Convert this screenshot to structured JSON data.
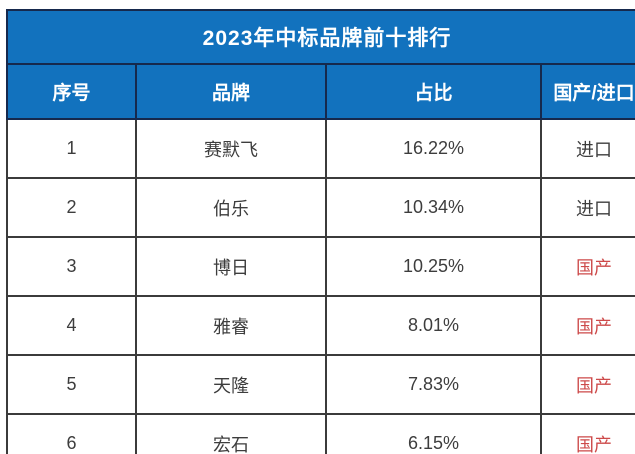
{
  "chart_data": {
    "type": "table",
    "title": "2023年中标品牌前十排行",
    "columns": [
      "序号",
      "品牌",
      "占比",
      "国产/进口"
    ],
    "rows": [
      [
        "1",
        "赛默飞",
        "16.22%",
        "进口"
      ],
      [
        "2",
        "伯乐",
        "10.34%",
        "进口"
      ],
      [
        "3",
        "博日",
        "10.25%",
        "国产"
      ],
      [
        "4",
        "雅睿",
        "8.01%",
        "国产"
      ],
      [
        "5",
        "天隆",
        "7.83%",
        "国产"
      ],
      [
        "6",
        "宏石",
        "6.15%",
        "国产"
      ]
    ],
    "share_percent_numeric": [
      16.22,
      10.34,
      10.25,
      8.01,
      7.83,
      6.15
    ],
    "layout_hints": {
      "cropped_right": true,
      "cropped_bottom": true
    }
  },
  "colors": {
    "header_background": "#1272BE",
    "header_text": "#FFFFFF",
    "header_border": "#16294D",
    "body_border": "#3B3B3B",
    "body_text": "#3D3D3D",
    "domestic_red": "#CD4A4A",
    "page_background": "#FFFFFF"
  }
}
